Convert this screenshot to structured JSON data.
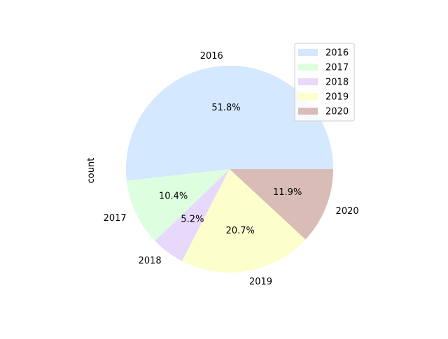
{
  "chart_data": {
    "type": "pie",
    "ylabel": "count",
    "categories": [
      "2016",
      "2017",
      "2018",
      "2019",
      "2020"
    ],
    "values": [
      51.8,
      10.4,
      5.2,
      20.7,
      11.9
    ],
    "percent_labels": [
      "51.8%",
      "10.4%",
      "5.2%",
      "20.7%",
      "11.9%"
    ],
    "colors": [
      "#d4e8ff",
      "#ddffe0",
      "#e8d8fc",
      "#fcffcc",
      "#dabcb6"
    ],
    "start_angle_deg": 0,
    "direction": "counterclockwise",
    "legend": {
      "placement": "upper right",
      "entries": [
        "2016",
        "2017",
        "2018",
        "2019",
        "2020"
      ]
    }
  }
}
